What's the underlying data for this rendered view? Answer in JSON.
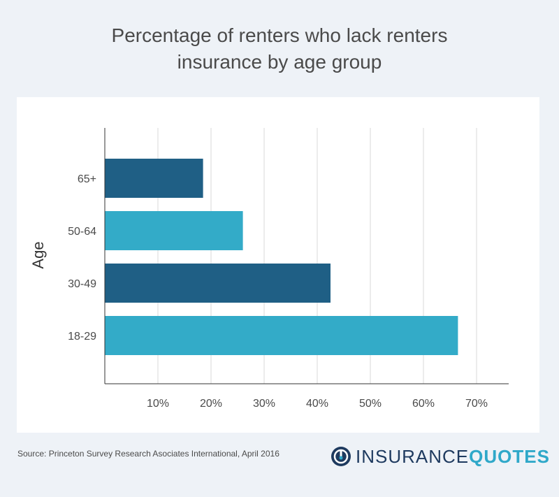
{
  "chart_data": {
    "type": "bar",
    "orientation": "horizontal",
    "title_lines": [
      "Percentage of renters who lack renters",
      "insurance by age group"
    ],
    "ylabel": "Age",
    "xlabel": "",
    "categories": [
      "65+",
      "50-64",
      "30-49",
      "18-29"
    ],
    "values": [
      18.5,
      26,
      42.5,
      66.5
    ],
    "bar_colors": [
      "#1f5f85",
      "#33abc8",
      "#1f5f85",
      "#33abc8"
    ],
    "xticks": [
      10,
      20,
      30,
      40,
      50,
      60,
      70
    ],
    "xtick_labels": [
      "10%",
      "20%",
      "30%",
      "40%",
      "50%",
      "60%",
      "70%"
    ],
    "xlim": [
      0,
      75
    ],
    "grid": "vertical"
  },
  "source": "Source: Princeton Survey Research Asociates International, April 2016",
  "logo": {
    "part1": "INSURANCE",
    "part2": "QUOTES",
    "colors": {
      "dark": "#1e3a5f",
      "accent": "#2fa8c9"
    }
  }
}
